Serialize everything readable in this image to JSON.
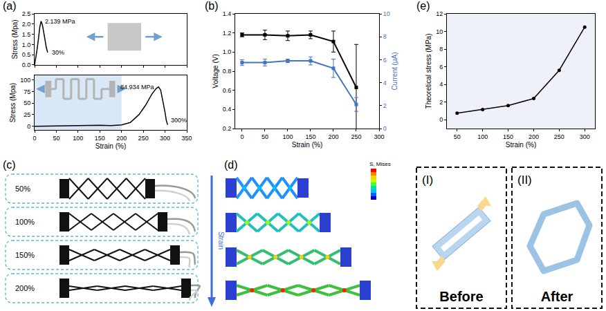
{
  "chart_data": [
    {
      "panel_label": "(a)",
      "type": "line",
      "x": [
        0,
        3,
        6,
        9,
        12,
        15,
        18,
        21,
        24,
        27,
        30
      ],
      "values": [
        0,
        0.35,
        0.8,
        1.3,
        1.85,
        2.139,
        1.95,
        1.6,
        1.2,
        0.85,
        0.6
      ],
      "color": "#000000",
      "xlim": [
        0,
        350
      ],
      "xticks": [
        0,
        50,
        100,
        150,
        200,
        250,
        300,
        350
      ],
      "ylim": [
        0,
        2.5
      ],
      "yticks": [
        {
          "value": 0,
          "label": "0.0"
        },
        0.5,
        {
          "value": 1,
          "label": "1.0"
        },
        1.5,
        {
          "value": 2,
          "label": "2.0"
        },
        2.5
      ],
      "y_label": "Stress (Mpa)",
      "tick_labels": "y",
      "annotations": [
        {
          "text": "2.139 MPa",
          "x": 15,
          "y": 2.139
        },
        {
          "text": "30%",
          "x": 30,
          "y": 0.6
        }
      ]
    },
    {
      "type": "line",
      "x": [
        0,
        25,
        50,
        75,
        100,
        125,
        150,
        175,
        200,
        220,
        240,
        255,
        270,
        280,
        285,
        290,
        295,
        300,
        303,
        306
      ],
      "values": [
        0,
        0.5,
        1,
        0.5,
        1,
        1.5,
        2,
        1.5,
        3,
        8,
        25,
        45,
        70,
        82,
        84.934,
        78,
        55,
        30,
        12,
        3
      ],
      "color": "#000000",
      "xlim": [
        0,
        350
      ],
      "xticks": [
        0,
        50,
        100,
        150,
        200,
        250,
        300,
        350
      ],
      "ylim": [
        -8,
        110
      ],
      "yticks": [
        0,
        25,
        50,
        75,
        100
      ],
      "x_label": "Strain (%)",
      "y_label": "Stress (Mpa)",
      "highlight_x": [
        0,
        200
      ],
      "annotations": [
        {
          "text": "84.934 MPa",
          "x": 285,
          "y": 84.934
        },
        {
          "text": "300%",
          "x": 305,
          "y": 3
        }
      ]
    },
    {
      "panel_label": "(b)",
      "type": "line",
      "x": [
        0,
        50,
        100,
        150,
        200,
        250
      ],
      "series": [
        {
          "color": "#000000",
          "marker": "square",
          "values": [
            1.18,
            1.18,
            1.17,
            1.18,
            1.11,
            0.63
          ],
          "errors": [
            0.02,
            0.05,
            0.05,
            0.04,
            0.11,
            0.45
          ]
        },
        {
          "color": "#4472c4",
          "marker": "square",
          "axis": "y2",
          "values": [
            5.75,
            5.75,
            5.9,
            5.9,
            5.25,
            2.1
          ],
          "errors": [
            0.25,
            0.3,
            0.15,
            0.35,
            0.8,
            0.6
          ]
        }
      ],
      "xlim": [
        -15,
        300
      ],
      "xticks": [
        0,
        50,
        100,
        150,
        200,
        250,
        300
      ],
      "ylim": [
        0.2,
        1.4
      ],
      "yticks": [
        0.2,
        0.4,
        0.6,
        0.8,
        {
          "value": 1,
          "label": "1.0"
        },
        1.2,
        1.4
      ],
      "y2lim": [
        0,
        10
      ],
      "y2ticks": [
        0,
        2,
        4,
        6,
        8,
        10
      ],
      "x_label": "Strain (%)",
      "y_label": "Voltage (V)",
      "y2_label": "Current (μA)"
    },
    {
      "panel_label": "(e)",
      "type": "line",
      "x": [
        50,
        100,
        150,
        200,
        250,
        300
      ],
      "values": [
        0.75,
        1.15,
        1.6,
        2.4,
        5.6,
        10.5
      ],
      "color": "#000000",
      "marker": "circle",
      "xlim": [
        30,
        320
      ],
      "xticks": [
        50,
        100,
        150,
        200,
        250,
        300
      ],
      "ylim": [
        -1,
        12
      ],
      "yticks": [
        0,
        2,
        4,
        6,
        8,
        10,
        12
      ],
      "x_label": "Strain (%)",
      "y_label": "Theoretical stress (MPa)"
    }
  ],
  "diagrams": {
    "c": {
      "panel_label": "(c)",
      "rows": [
        "50%",
        "100%",
        "150%",
        "200%"
      ]
    },
    "d": {
      "panel_label": "(d)",
      "arrow_text": "Strain",
      "legend_title": "S, Mises"
    },
    "states": [
      {
        "panel_label": "(I)",
        "caption": "Before"
      },
      {
        "panel_label": "(II)",
        "caption": "After"
      }
    ]
  }
}
